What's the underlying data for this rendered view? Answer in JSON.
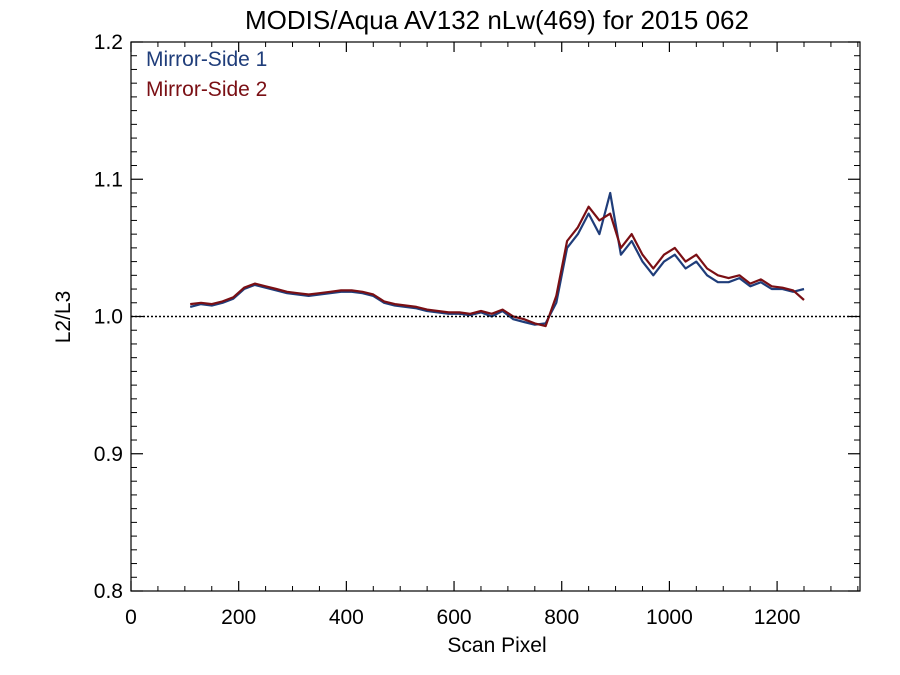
{
  "chart_data": {
    "type": "line",
    "title": "MODIS/Aqua AV132 nLw(469) for 2015 062",
    "xlabel": "Scan Pixel",
    "ylabel": "L2/L3",
    "xlim": [
      0,
      1354
    ],
    "ylim": [
      0.8,
      1.2
    ],
    "xticks": [
      0,
      200,
      400,
      600,
      800,
      1000,
      1200
    ],
    "xtick_labels": [
      "0",
      "200",
      "400",
      "600",
      "800",
      "1000",
      "1200"
    ],
    "yticks": [
      0.8,
      0.9,
      1.0,
      1.1,
      1.2
    ],
    "ytick_labels": [
      "0.8",
      "0.9",
      "1.0",
      "1.1",
      "1.2"
    ],
    "reference_line": 1.0,
    "legend_position": "top-left",
    "grid": false,
    "colors": {
      "mirror_side_1": "#1f3d7a",
      "mirror_side_2": "#7a0f14"
    },
    "x": [
      110,
      130,
      150,
      170,
      190,
      210,
      230,
      250,
      270,
      290,
      310,
      330,
      350,
      370,
      390,
      410,
      430,
      450,
      470,
      490,
      510,
      530,
      550,
      570,
      590,
      610,
      630,
      650,
      670,
      690,
      710,
      730,
      750,
      770,
      790,
      810,
      830,
      850,
      870,
      890,
      910,
      930,
      950,
      970,
      990,
      1010,
      1030,
      1050,
      1070,
      1090,
      1110,
      1130,
      1150,
      1170,
      1190,
      1210,
      1230,
      1250
    ],
    "series": [
      {
        "name": "Mirror-Side 1",
        "values": [
          1.007,
          1.009,
          1.008,
          1.01,
          1.013,
          1.02,
          1.023,
          1.021,
          1.019,
          1.017,
          1.016,
          1.015,
          1.016,
          1.017,
          1.018,
          1.018,
          1.017,
          1.015,
          1.01,
          1.008,
          1.007,
          1.006,
          1.004,
          1.003,
          1.002,
          1.002,
          1.001,
          1.003,
          1.0,
          1.004,
          0.998,
          0.996,
          0.994,
          0.995,
          1.01,
          1.05,
          1.06,
          1.075,
          1.06,
          1.09,
          1.045,
          1.055,
          1.04,
          1.03,
          1.04,
          1.045,
          1.035,
          1.04,
          1.03,
          1.025,
          1.025,
          1.028,
          1.022,
          1.025,
          1.02,
          1.02,
          1.018,
          1.02
        ]
      },
      {
        "name": "Mirror-Side 2",
        "values": [
          1.009,
          1.01,
          1.009,
          1.011,
          1.014,
          1.021,
          1.024,
          1.022,
          1.02,
          1.018,
          1.017,
          1.016,
          1.017,
          1.018,
          1.019,
          1.019,
          1.018,
          1.016,
          1.011,
          1.009,
          1.008,
          1.007,
          1.005,
          1.004,
          1.003,
          1.003,
          1.002,
          1.004,
          1.002,
          1.005,
          1.0,
          0.998,
          0.995,
          0.993,
          1.015,
          1.055,
          1.065,
          1.08,
          1.07,
          1.075,
          1.05,
          1.06,
          1.045,
          1.035,
          1.045,
          1.05,
          1.04,
          1.045,
          1.035,
          1.03,
          1.028,
          1.03,
          1.024,
          1.027,
          1.022,
          1.021,
          1.019,
          1.012
        ]
      }
    ]
  }
}
